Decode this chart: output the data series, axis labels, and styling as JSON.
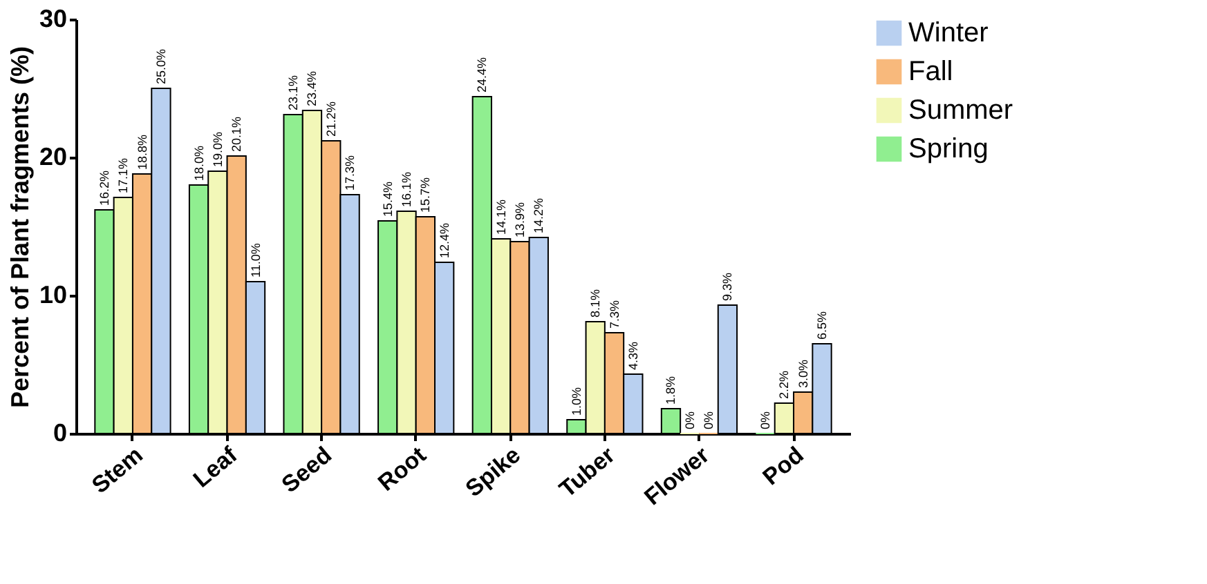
{
  "chart_data": {
    "type": "bar",
    "ylabel": "Percent of Plant fragments (%)",
    "categories": [
      "Stem",
      "Leaf",
      "Seed",
      "Root",
      "Spike",
      "Tuber",
      "Flower",
      "Pod"
    ],
    "series": [
      {
        "name": "Spring",
        "color": "#90ee90",
        "values": [
          16.2,
          18.0,
          23.1,
          15.4,
          24.4,
          1.0,
          1.8,
          0
        ],
        "value_labels": [
          "16.2%",
          "18.0%",
          "23.1%",
          "15.4%",
          "24.4%",
          "1.0%",
          "1.8%",
          "0%"
        ]
      },
      {
        "name": "Summer",
        "color": "#f2f7b8",
        "values": [
          17.1,
          19.0,
          23.4,
          16.1,
          14.1,
          8.1,
          0,
          2.2
        ],
        "value_labels": [
          "17.1%",
          "19.0%",
          "23.4%",
          "16.1%",
          "14.1%",
          "8.1%",
          "0%",
          "2.2%"
        ]
      },
      {
        "name": "Fall",
        "color": "#f8b97c",
        "values": [
          18.8,
          20.1,
          21.2,
          15.7,
          13.9,
          7.3,
          0,
          3.0
        ],
        "value_labels": [
          "18.8%",
          "20.1%",
          "21.2%",
          "15.7%",
          "13.9%",
          "7.3%",
          "0%",
          "3.0%"
        ]
      },
      {
        "name": "Winter",
        "color": "#b9d0f0",
        "values": [
          25.0,
          11.0,
          17.3,
          12.4,
          14.2,
          4.3,
          9.3,
          6.5
        ],
        "value_labels": [
          "25.0%",
          "11.0%",
          "17.3%",
          "12.4%",
          "14.2%",
          "4.3%",
          "9.3%",
          "6.5%"
        ]
      }
    ],
    "ylim": [
      0,
      30
    ],
    "yticks": [
      0,
      10,
      20,
      30
    ],
    "grid": false,
    "legend": "right"
  }
}
